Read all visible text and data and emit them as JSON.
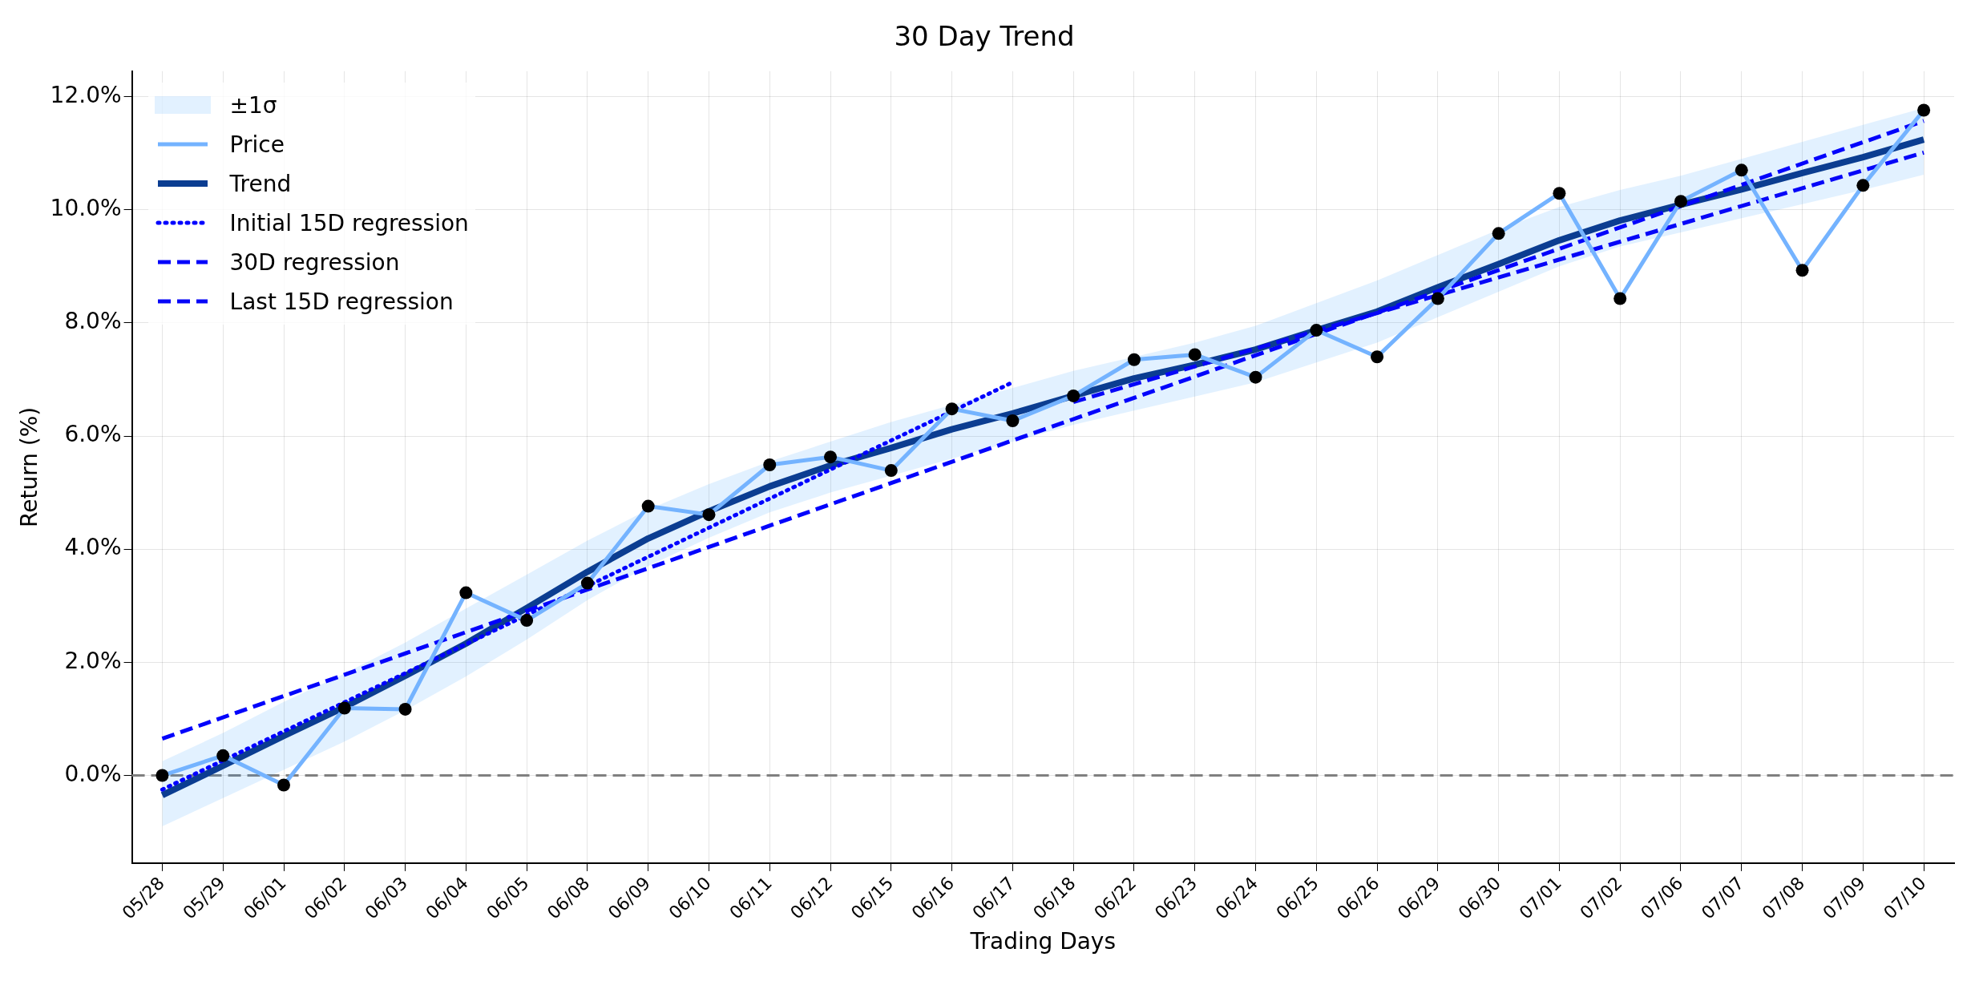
{
  "chart_data": {
    "type": "line",
    "title": "30 Day Trend",
    "xlabel": "Trading Days",
    "ylabel": "Return (%)",
    "categories": [
      "05/28",
      "05/29",
      "06/01",
      "06/02",
      "06/03",
      "06/04",
      "06/05",
      "06/08",
      "06/09",
      "06/10",
      "06/11",
      "06/12",
      "06/15",
      "06/16",
      "06/17",
      "06/18",
      "06/22",
      "06/23",
      "06/24",
      "06/25",
      "06/26",
      "06/29",
      "06/30",
      "07/01",
      "07/02",
      "07/06",
      "07/07",
      "07/08",
      "07/09",
      "07/10"
    ],
    "series": [
      {
        "name": "Price",
        "type": "line",
        "color": "#74b3ff",
        "marker": "circle",
        "line_style": "solid",
        "values": [
          0,
          0.35,
          -0.17,
          1.19,
          1.17,
          3.23,
          2.74,
          3.4,
          4.76,
          4.61,
          5.49,
          5.63,
          5.39,
          6.48,
          6.27,
          6.71,
          7.35,
          7.44,
          7.04,
          7.87,
          7.4,
          8.43,
          9.58,
          10.29,
          8.43,
          10.15,
          10.7,
          8.93,
          10.43,
          11.76
        ]
      },
      {
        "name": "Trend",
        "type": "line",
        "color": "#0b3d91",
        "marker": "none",
        "line_style": "solid",
        "values": [
          -0.35,
          0.17,
          0.7,
          1.21,
          1.76,
          2.33,
          2.96,
          3.6,
          4.19,
          4.67,
          5.11,
          5.48,
          5.79,
          6.12,
          6.4,
          6.71,
          7.02,
          7.26,
          7.53,
          7.87,
          8.2,
          8.63,
          9.04,
          9.46,
          9.81,
          10.09,
          10.36,
          10.65,
          10.93,
          11.24
        ],
        "lower": [
          -0.9,
          -0.4,
          0.1,
          0.6,
          1.15,
          1.75,
          2.4,
          3.1,
          3.7,
          4.2,
          4.65,
          5.0,
          5.3,
          5.6,
          5.9,
          6.2,
          6.45,
          6.7,
          6.95,
          7.3,
          7.65,
          8.1,
          8.55,
          9.0,
          9.35,
          9.6,
          9.85,
          10.1,
          10.35,
          10.62
        ],
        "upper": [
          0.25,
          0.75,
          1.3,
          1.8,
          2.35,
          2.95,
          3.55,
          4.15,
          4.7,
          5.15,
          5.55,
          5.9,
          6.25,
          6.55,
          6.85,
          7.15,
          7.4,
          7.65,
          7.95,
          8.35,
          8.75,
          9.2,
          9.65,
          10.05,
          10.35,
          10.6,
          10.9,
          11.2,
          11.5,
          11.8
        ]
      },
      {
        "name": "Initial 15D regression",
        "type": "line",
        "color": "#0000ff",
        "marker": "none",
        "line_style": "dotted",
        "x": [
          "05/28",
          "06/17"
        ],
        "values": [
          -0.25,
          6.95
        ]
      },
      {
        "name": "30D regression",
        "type": "line",
        "color": "#0303fc",
        "marker": "none",
        "line_style": "dashed",
        "x": [
          "05/28",
          "07/10"
        ],
        "values": [
          0.65,
          11.57
        ]
      },
      {
        "name": "Last 15D regression",
        "type": "line",
        "color": "#0606f8",
        "marker": "none",
        "line_style": "dashed",
        "x": [
          "06/18",
          "07/10"
        ],
        "values": [
          6.6,
          11.01
        ]
      }
    ],
    "annotations": [
      "±1σ"
    ],
    "ylim": [
      -1.55,
      12.45
    ],
    "yticks": [
      {
        "value": 0,
        "label": "0.0%"
      },
      {
        "value": 2,
        "label": "2.0%"
      },
      {
        "value": 4,
        "label": "4.0%"
      },
      {
        "value": 6,
        "label": "6.0%"
      },
      {
        "value": 8,
        "label": "8.0%"
      },
      {
        "value": 10,
        "label": "10.0%"
      },
      {
        "value": 12,
        "label": "12.0%"
      }
    ],
    "ref_lines": [
      {
        "axis": "y",
        "value": 0,
        "color": "#808080",
        "line_style": "dashed"
      }
    ],
    "grid": true,
    "legend": "top left"
  }
}
